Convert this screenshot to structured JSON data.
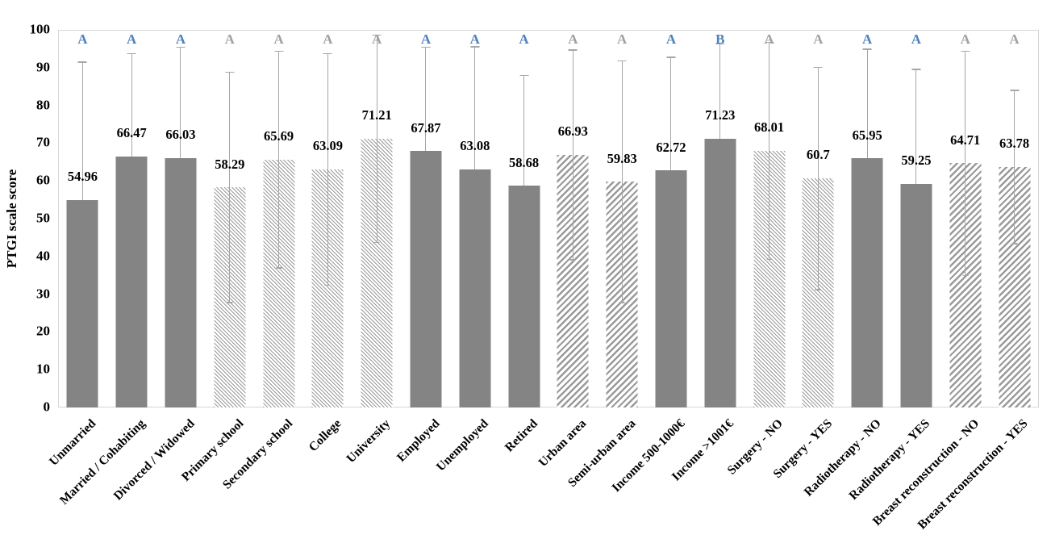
{
  "chart_data": {
    "type": "bar",
    "title": "",
    "xlabel": "",
    "ylabel": "PTGI scale score",
    "ylim": [
      0,
      100
    ],
    "yticks": [
      0,
      10,
      20,
      30,
      40,
      50,
      60,
      70,
      80,
      90,
      100
    ],
    "grid": false,
    "legend": "none",
    "error_bars": "symmetric, cap at ends; lower half visible only on hatched bars",
    "bars": [
      {
        "label": "Unmarried",
        "value": 54.96,
        "error": 36.6,
        "pattern": "solid",
        "letter": "A",
        "letter_color": "blue"
      },
      {
        "label": "Married / Cohabiting",
        "value": 66.47,
        "error": 27.3,
        "pattern": "solid",
        "letter": "A",
        "letter_color": "blue"
      },
      {
        "label": "Divorced / Widowed",
        "value": 66.03,
        "error": 29.4,
        "pattern": "solid",
        "letter": "A",
        "letter_color": "blue"
      },
      {
        "label": "Primary school",
        "value": 58.29,
        "error": 30.5,
        "pattern": "hatch-down",
        "letter": "A",
        "letter_color": "gray"
      },
      {
        "label": "Secondary school",
        "value": 65.69,
        "error": 28.7,
        "pattern": "hatch-down",
        "letter": "A",
        "letter_color": "gray"
      },
      {
        "label": "College",
        "value": 63.09,
        "error": 30.7,
        "pattern": "hatch-down",
        "letter": "A",
        "letter_color": "gray"
      },
      {
        "label": "University",
        "value": 71.21,
        "error": 27.5,
        "pattern": "hatch-down",
        "letter": "A",
        "letter_color": "gray"
      },
      {
        "label": "Employed",
        "value": 67.87,
        "error": 27.6,
        "pattern": "solid",
        "letter": "A",
        "letter_color": "blue"
      },
      {
        "label": "Unemployed",
        "value": 63.08,
        "error": 32.5,
        "pattern": "solid",
        "letter": "A",
        "letter_color": "blue"
      },
      {
        "label": "Retired",
        "value": 58.68,
        "error": 29.3,
        "pattern": "solid",
        "letter": "A",
        "letter_color": "blue"
      },
      {
        "label": "Urban area",
        "value": 66.93,
        "error": 27.8,
        "pattern": "hatch-up",
        "letter": "A",
        "letter_color": "gray"
      },
      {
        "label": "Semi-urban area",
        "value": 59.83,
        "error": 32.0,
        "pattern": "hatch-up",
        "letter": "A",
        "letter_color": "gray"
      },
      {
        "label": "Income 500-1000€",
        "value": 62.72,
        "error": 30.1,
        "pattern": "solid",
        "letter": "A",
        "letter_color": "blue"
      },
      {
        "label": "Income >1001€",
        "value": 71.23,
        "error": 25.1,
        "pattern": "solid",
        "letter": "B",
        "letter_color": "blue"
      },
      {
        "label": "Surgery - NO",
        "value": 68.01,
        "error": 28.7,
        "pattern": "hatch-down",
        "letter": "A",
        "letter_color": "gray"
      },
      {
        "label": "Surgery - YES",
        "value": 60.7,
        "error": 29.4,
        "pattern": "hatch-down",
        "letter": "A",
        "letter_color": "gray"
      },
      {
        "label": "Radiotherapy - NO",
        "value": 65.95,
        "error": 29.0,
        "pattern": "solid",
        "letter": "A",
        "letter_color": "blue"
      },
      {
        "label": "Radiotherapy - YES",
        "value": 59.25,
        "error": 30.3,
        "pattern": "solid",
        "letter": "A",
        "letter_color": "blue"
      },
      {
        "label": "Breast reconstruction - NO",
        "value": 64.71,
        "error": 29.7,
        "pattern": "hatch-up",
        "letter": "A",
        "letter_color": "gray"
      },
      {
        "label": "Breast reconstruction - YES",
        "value": 63.78,
        "error": 20.3,
        "pattern": "hatch-up",
        "letter": "A",
        "letter_color": "gray"
      }
    ],
    "colors": {
      "solid_fill": "#848484",
      "hatch_line": "#9a9a9a",
      "error_bar": "#a6a6a6",
      "letter_blue": "#4f81bd",
      "letter_gray": "#a0a0a0",
      "axis_border": "#d6d6d6",
      "text": "#000000",
      "background": "#ffffff"
    }
  }
}
